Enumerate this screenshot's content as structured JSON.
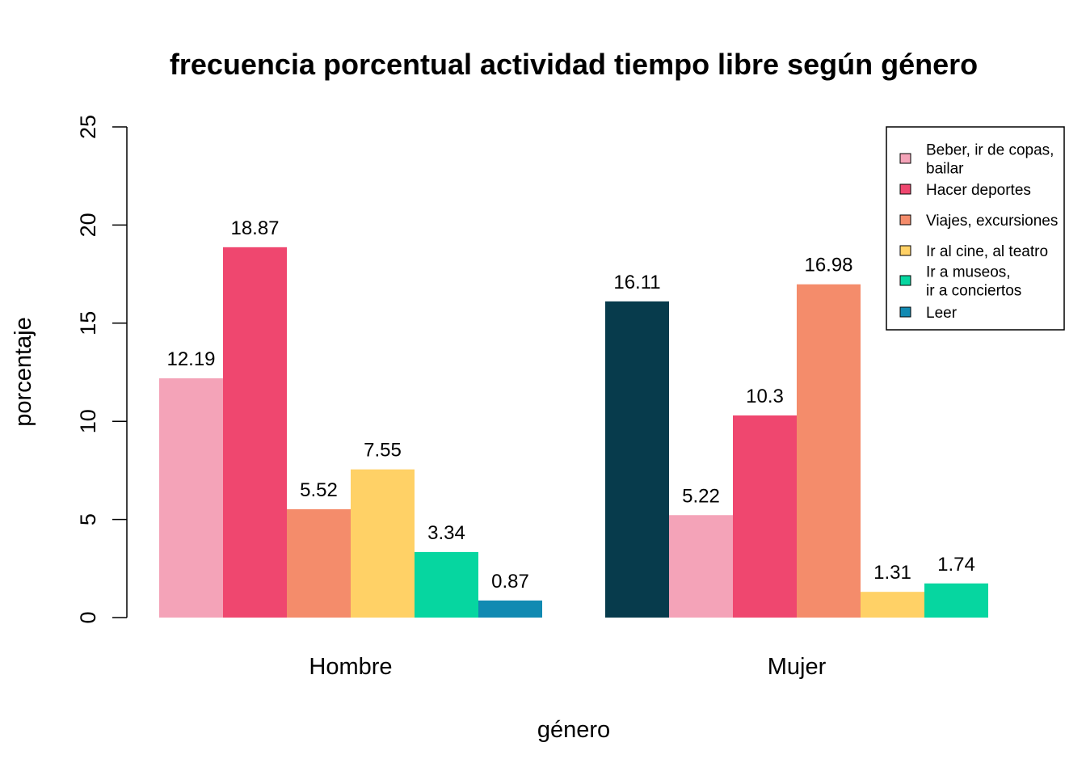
{
  "chart_data": {
    "type": "bar",
    "title": "frecuencia porcentual actividad tiempo libre según género",
    "xlabel": "género",
    "ylabel": "porcentaje",
    "ylim": [
      0,
      25
    ],
    "yticks": [
      "0",
      "5",
      "10",
      "15",
      "20",
      "25"
    ],
    "categories": [
      "Hombre",
      "Mujer"
    ],
    "grid": false,
    "legend": {
      "position": "top-right",
      "entries": [
        {
          "lines": [
            "Beber, ir de copas,",
            "bailar"
          ],
          "color": "#F4A3B8"
        },
        {
          "lines": [
            "Hacer deportes"
          ],
          "color": "#EF476F"
        },
        {
          "lines": [
            "Viajes, excursiones"
          ],
          "color": "#F48C6B"
        },
        {
          "lines": [
            "Ir al cine, al teatro"
          ],
          "color": "#FFD166"
        },
        {
          "lines": [
            "Ir a museos,",
            "ir a conciertos"
          ],
          "color": "#06D6A0"
        },
        {
          "lines": [
            "Leer"
          ],
          "color": "#118AB2"
        }
      ]
    },
    "groups": [
      {
        "category": "Hombre",
        "bars": [
          {
            "value": 12.19,
            "label": "12.19",
            "color": "#F4A3B8"
          },
          {
            "value": 18.87,
            "label": "18.87",
            "color": "#EF476F"
          },
          {
            "value": 5.52,
            "label": "5.52",
            "color": "#F48C6B"
          },
          {
            "value": 7.55,
            "label": "7.55",
            "color": "#FFD166"
          },
          {
            "value": 3.34,
            "label": "3.34",
            "color": "#06D6A0"
          },
          {
            "value": 0.87,
            "label": "0.87",
            "color": "#118AB2"
          }
        ]
      },
      {
        "category": "Mujer",
        "bars": [
          {
            "value": 16.11,
            "label": "16.11",
            "color": "#073B4C"
          },
          {
            "value": 5.22,
            "label": "5.22",
            "color": "#F4A3B8"
          },
          {
            "value": 10.3,
            "label": "10.3",
            "color": "#EF476F"
          },
          {
            "value": 16.98,
            "label": "16.98",
            "color": "#F48C6B"
          },
          {
            "value": 1.31,
            "label": "1.31",
            "color": "#FFD166"
          },
          {
            "value": 1.74,
            "label": "1.74",
            "color": "#06D6A0"
          }
        ]
      }
    ]
  }
}
